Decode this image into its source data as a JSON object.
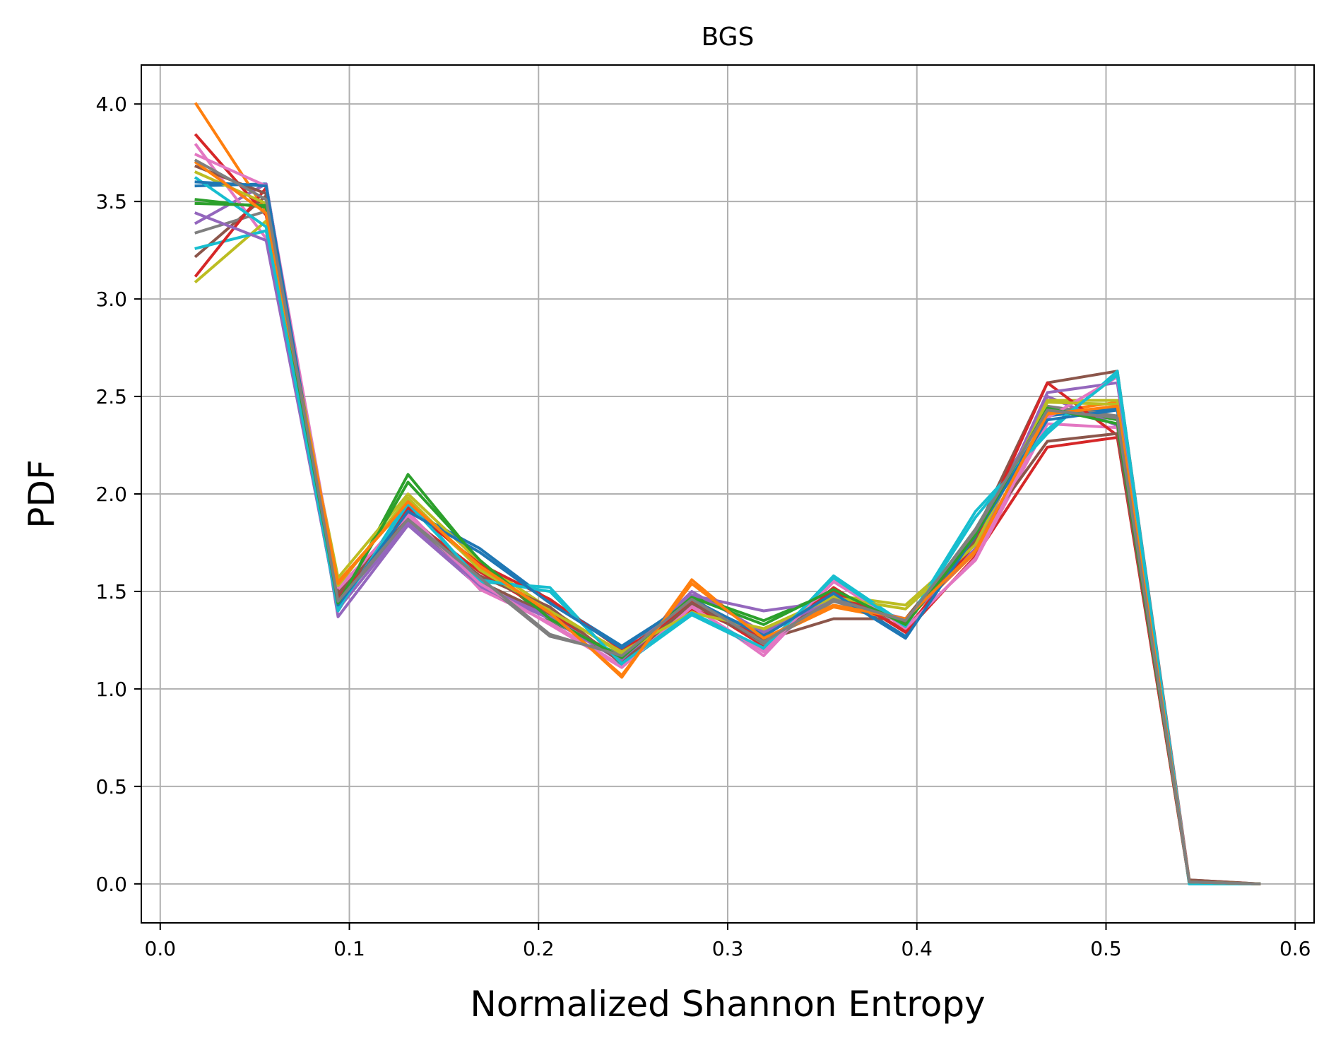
{
  "chart_data": {
    "type": "line",
    "title": "BGS",
    "xlabel": "Normalized Shannon Entropy",
    "ylabel": "PDF",
    "xlim": [
      -0.01,
      0.61
    ],
    "ylim": [
      -0.2,
      4.2
    ],
    "xticks": [
      0.0,
      0.1,
      0.2,
      0.3,
      0.4,
      0.5,
      0.6
    ],
    "xtick_labels": [
      "0.0",
      "0.1",
      "0.2",
      "0.3",
      "0.4",
      "0.5",
      "0.6"
    ],
    "yticks": [
      0.0,
      0.5,
      1.0,
      1.5,
      2.0,
      2.5,
      3.0,
      3.5,
      4.0
    ],
    "ytick_labels": [
      "0.0",
      "0.5",
      "1.0",
      "1.5",
      "2.0",
      "2.5",
      "3.0",
      "3.5",
      "4.0"
    ],
    "grid": true,
    "x": [
      0.019,
      0.056,
      0.094,
      0.131,
      0.169,
      0.206,
      0.244,
      0.281,
      0.319,
      0.356,
      0.394,
      0.431,
      0.469,
      0.506,
      0.544,
      0.581
    ],
    "series": [
      {
        "color": "#1f77b4",
        "values": [
          3.58,
          3.59,
          1.42,
          1.92,
          1.72,
          1.45,
          1.22,
          1.45,
          1.28,
          1.5,
          1.27,
          1.78,
          2.4,
          2.44,
          0.01,
          0.0
        ]
      },
      {
        "color": "#ff7f0e",
        "values": [
          4.0,
          3.45,
          1.55,
          1.95,
          1.62,
          1.4,
          1.06,
          1.56,
          1.25,
          1.42,
          1.35,
          1.7,
          2.42,
          2.47,
          0.01,
          0.0
        ]
      },
      {
        "color": "#2ca02c",
        "values": [
          3.51,
          3.47,
          1.43,
          2.1,
          1.65,
          1.35,
          1.17,
          1.48,
          1.35,
          1.5,
          1.33,
          1.8,
          2.45,
          2.38,
          0.01,
          0.0
        ]
      },
      {
        "color": "#d62728",
        "values": [
          3.84,
          3.43,
          1.48,
          1.88,
          1.6,
          1.39,
          1.15,
          1.45,
          1.22,
          1.52,
          1.29,
          1.68,
          2.24,
          2.29,
          0.01,
          0.0
        ]
      },
      {
        "color": "#9467bd",
        "values": [
          3.39,
          3.59,
          1.37,
          1.84,
          1.52,
          1.36,
          1.14,
          1.48,
          1.4,
          1.45,
          1.36,
          1.72,
          2.5,
          2.35,
          0.01,
          0.0
        ]
      },
      {
        "color": "#8c564b",
        "values": [
          3.22,
          3.53,
          1.46,
          1.9,
          1.55,
          1.38,
          1.14,
          1.42,
          1.25,
          1.36,
          1.36,
          1.8,
          2.57,
          2.63,
          0.02,
          0.0
        ]
      },
      {
        "color": "#e377c2",
        "values": [
          3.79,
          3.31,
          1.5,
          1.91,
          1.51,
          1.34,
          1.12,
          1.43,
          1.17,
          1.55,
          1.32,
          1.66,
          2.36,
          2.34,
          0.01,
          0.0
        ]
      },
      {
        "color": "#7f7f7f",
        "values": [
          3.34,
          3.45,
          1.44,
          1.86,
          1.56,
          1.27,
          1.18,
          1.47,
          1.23,
          1.45,
          1.34,
          1.82,
          2.45,
          2.4,
          0.01,
          0.0
        ]
      },
      {
        "color": "#bcbd22",
        "values": [
          3.09,
          3.4,
          1.57,
          2.0,
          1.65,
          1.41,
          1.18,
          1.4,
          1.3,
          1.48,
          1.43,
          1.75,
          2.48,
          2.48,
          0.01,
          0.0
        ]
      },
      {
        "color": "#17becf",
        "values": [
          3.26,
          3.35,
          1.4,
          1.97,
          1.55,
          1.52,
          1.12,
          1.38,
          1.2,
          1.58,
          1.33,
          1.91,
          2.31,
          2.63,
          0.0,
          0.0
        ]
      },
      {
        "color": "#d62728",
        "values": [
          3.12,
          3.57,
          1.45,
          1.93,
          1.64,
          1.46,
          1.2,
          1.41,
          1.27,
          1.5,
          1.3,
          1.75,
          2.57,
          2.3,
          0.01,
          0.0
        ]
      },
      {
        "color": "#8c564b",
        "values": [
          3.68,
          3.54,
          1.49,
          1.87,
          1.58,
          1.42,
          1.13,
          1.44,
          1.24,
          1.47,
          1.34,
          1.76,
          2.27,
          2.31,
          0.02,
          0.0
        ]
      },
      {
        "color": "#9467bd",
        "values": [
          3.44,
          3.3,
          1.41,
          1.85,
          1.53,
          1.37,
          1.15,
          1.5,
          1.29,
          1.46,
          1.35,
          1.71,
          2.52,
          2.57,
          0.01,
          0.0
        ]
      },
      {
        "color": "#e377c2",
        "values": [
          3.74,
          3.58,
          1.52,
          1.89,
          1.54,
          1.33,
          1.11,
          1.42,
          1.19,
          1.56,
          1.31,
          1.67,
          2.39,
          2.6,
          0.01,
          0.0
        ]
      },
      {
        "color": "#bcbd22",
        "values": [
          3.65,
          3.49,
          1.53,
          1.98,
          1.61,
          1.4,
          1.19,
          1.39,
          1.31,
          1.47,
          1.41,
          1.74,
          2.47,
          2.46,
          0.01,
          0.0
        ]
      },
      {
        "color": "#17becf",
        "values": [
          3.62,
          3.37,
          1.41,
          1.95,
          1.56,
          1.5,
          1.13,
          1.39,
          1.21,
          1.57,
          1.32,
          1.88,
          2.33,
          2.61,
          0.0,
          0.0
        ]
      },
      {
        "color": "#1f77b4",
        "values": [
          3.6,
          3.58,
          1.43,
          1.91,
          1.7,
          1.44,
          1.21,
          1.46,
          1.27,
          1.49,
          1.26,
          1.79,
          2.38,
          2.43,
          0.01,
          0.0
        ]
      },
      {
        "color": "#2ca02c",
        "values": [
          3.49,
          3.48,
          1.44,
          2.06,
          1.66,
          1.36,
          1.16,
          1.47,
          1.33,
          1.51,
          1.33,
          1.79,
          2.44,
          2.36,
          0.01,
          0.0
        ]
      },
      {
        "color": "#ff7f0e",
        "values": [
          3.7,
          3.44,
          1.54,
          1.96,
          1.63,
          1.39,
          1.07,
          1.54,
          1.26,
          1.43,
          1.36,
          1.71,
          2.41,
          2.45,
          0.01,
          0.0
        ]
      },
      {
        "color": "#7f7f7f",
        "values": [
          3.71,
          3.51,
          1.45,
          1.87,
          1.57,
          1.28,
          1.17,
          1.46,
          1.24,
          1.46,
          1.35,
          1.81,
          2.43,
          2.39,
          0.01,
          0.0
        ]
      }
    ]
  }
}
